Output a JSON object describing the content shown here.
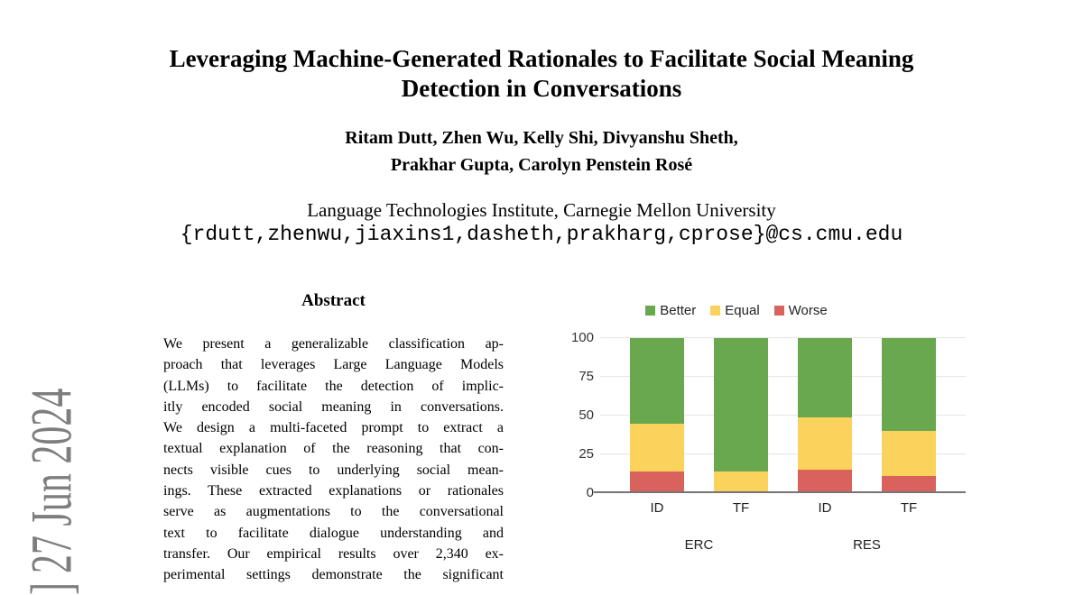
{
  "arxiv_stamp": {
    "edge_fragment": "]",
    "text": "27 Jun 2024"
  },
  "title": {
    "line1": "Leveraging Machine-Generated Rationales to Facilitate Social Meaning",
    "line2": "Detection in Conversations"
  },
  "authors": {
    "line1": "Ritam Dutt, Zhen Wu, Kelly Shi, Divyanshu Sheth,",
    "line2": "Prakhar Gupta, Carolyn Penstein Rosé"
  },
  "affiliation": "Language Technologies Institute, Carnegie Mellon University",
  "email": "{rdutt,zhenwu,jiaxins1,dasheth,prakharg,cprose}@cs.cmu.edu",
  "abstract": {
    "heading": "Abstract",
    "lines": [
      "We present a generalizable classification ap-",
      "proach that leverages Large Language Models",
      "(LLMs) to facilitate the detection of implic-",
      "itly encoded social meaning in conversations.",
      "We design a multi-faceted prompt to extract a",
      "textual explanation of the reasoning that con-",
      "nects visible cues to underlying social mean-",
      "ings. These extracted explanations or rationales",
      "serve as augmentations to the conversational",
      "text to facilitate dialogue understanding and",
      "transfer. Our empirical results over 2,340 ex-",
      "perimental settings demonstrate the significant"
    ]
  },
  "chart_data": {
    "type": "bar",
    "stacked": true,
    "categories": [
      "ID",
      "TF",
      "ID",
      "TF"
    ],
    "groups": [
      {
        "label": "ERC",
        "bars": [
          0,
          1
        ]
      },
      {
        "label": "RES",
        "bars": [
          2,
          3
        ]
      }
    ],
    "series": [
      {
        "name": "Better",
        "color": "#6aa84f",
        "values": [
          55,
          86,
          51,
          60
        ]
      },
      {
        "name": "Equal",
        "color": "#fbd35c",
        "values": [
          31,
          13,
          34,
          29
        ]
      },
      {
        "name": "Worse",
        "color": "#d9635c",
        "values": [
          14,
          1,
          15,
          11
        ]
      }
    ],
    "ylim": [
      0,
      100
    ],
    "yticks": [
      0,
      25,
      50,
      75,
      100
    ],
    "legend_position": "top",
    "grid": true
  }
}
